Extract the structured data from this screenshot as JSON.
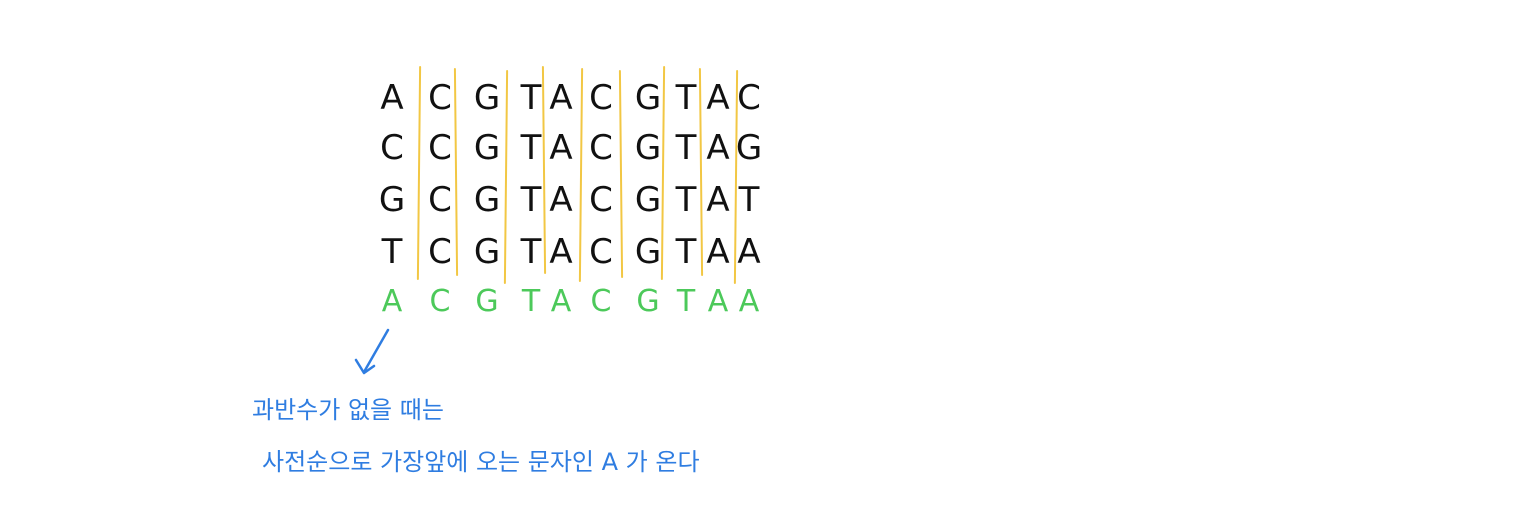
{
  "alignment": {
    "rows": [
      [
        "A",
        "C",
        "G",
        "T",
        "A",
        "C",
        "G",
        "T",
        "A",
        "C"
      ],
      [
        "C",
        "C",
        "G",
        "T",
        "A",
        "C",
        "G",
        "T",
        "A",
        "G"
      ],
      [
        "G",
        "C",
        "G",
        "T",
        "A",
        "C",
        "G",
        "T",
        "A",
        "T"
      ],
      [
        "T",
        "C",
        "G",
        "T",
        "A",
        "C",
        "G",
        "T",
        "A",
        "A"
      ]
    ],
    "consensus": [
      "A",
      "C",
      "G",
      "T",
      "A",
      "C",
      "G",
      "T",
      "A",
      "A"
    ]
  },
  "annotation": {
    "line1": "과반수가 없을 때는",
    "line2": "사전순으로 가장앞에 오는 문자인  A 가 온다"
  },
  "colors": {
    "ink": "#111111",
    "consensus": "#4cc95a",
    "divider": "#f2c744",
    "note": "#2f7de1"
  }
}
